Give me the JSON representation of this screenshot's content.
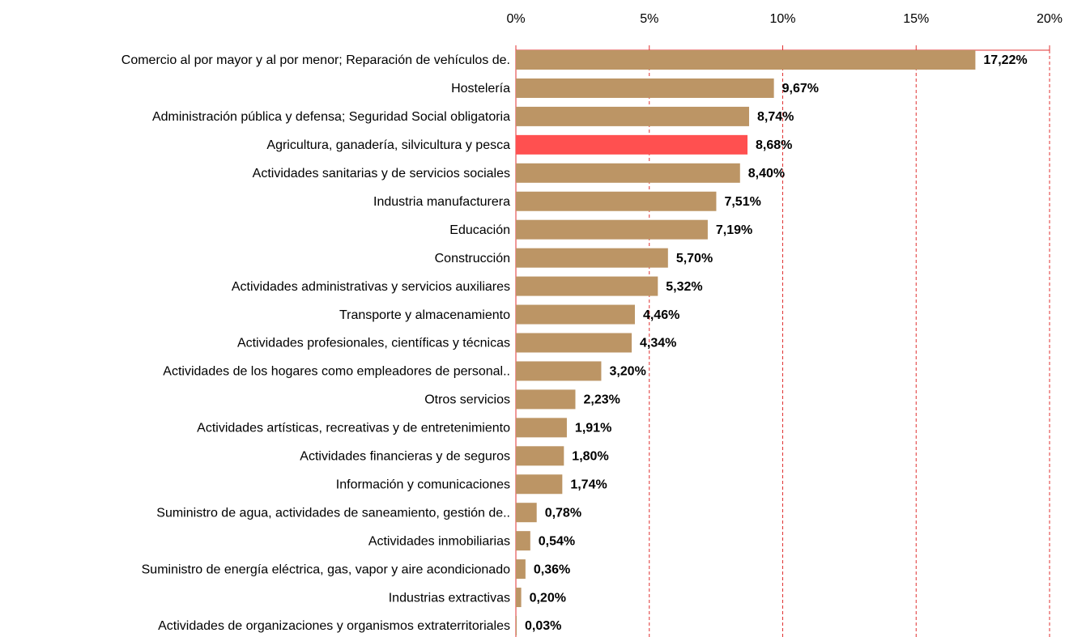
{
  "chart_data": {
    "type": "barh",
    "categories": [
      "Comercio al por mayor y al por menor; Reparación de vehículos de.",
      "Hostelería",
      "Administración pública y defensa; Seguridad Social obligatoria",
      "Agricultura, ganadería, silvicultura y pesca",
      "Actividades sanitarias y de servicios sociales",
      "Industria manufacturera",
      "Educación",
      "Construcción",
      "Actividades administrativas y servicios auxiliares",
      "Transporte y almacenamiento",
      "Actividades profesionales, científicas y técnicas",
      "Actividades de los hogares como empleadores de personal..",
      "Otros servicios",
      "Actividades artísticas, recreativas y de entretenimiento",
      "Actividades financieras y de seguros",
      "Información y comunicaciones",
      "Suministro de agua, actividades de saneamiento, gestión de..",
      "Actividades inmobiliarias",
      "Suministro de energía eléctrica, gas, vapor y aire acondicionado",
      "Industrias extractivas",
      "Actividades de organizaciones y organismos extraterritoriales"
    ],
    "values": [
      17.22,
      9.67,
      8.74,
      8.68,
      8.4,
      7.51,
      7.19,
      5.7,
      5.32,
      4.46,
      4.34,
      3.2,
      2.23,
      1.91,
      1.8,
      1.74,
      0.78,
      0.54,
      0.36,
      0.2,
      0.03
    ],
    "value_labels": [
      "17,22%",
      "9,67%",
      "8,74%",
      "8,68%",
      "8,40%",
      "7,51%",
      "7,19%",
      "5,70%",
      "5,32%",
      "4,46%",
      "4,34%",
      "3,20%",
      "2,23%",
      "1,91%",
      "1,80%",
      "1,74%",
      "0,78%",
      "0,54%",
      "0,36%",
      "0,20%",
      "0,03%"
    ],
    "colors": [
      "#bc9565",
      "#bc9565",
      "#bc9565",
      "#ff5050",
      "#bc9565",
      "#bc9565",
      "#bc9565",
      "#bc9565",
      "#bc9565",
      "#bc9565",
      "#bc9565",
      "#bc9565",
      "#bc9565",
      "#bc9565",
      "#bc9565",
      "#bc9565",
      "#bc9565",
      "#bc9565",
      "#bc9565",
      "#bc9565",
      "#bc9565"
    ],
    "xlim": [
      0,
      20
    ],
    "xticks": [
      {
        "value": 0,
        "label": "0%"
      },
      {
        "value": 5,
        "label": "5%"
      },
      {
        "value": 10,
        "label": "10%"
      },
      {
        "value": 15,
        "label": "15%"
      },
      {
        "value": 20,
        "label": "20%"
      }
    ],
    "grid": true,
    "grid_color": "#e03030"
  }
}
